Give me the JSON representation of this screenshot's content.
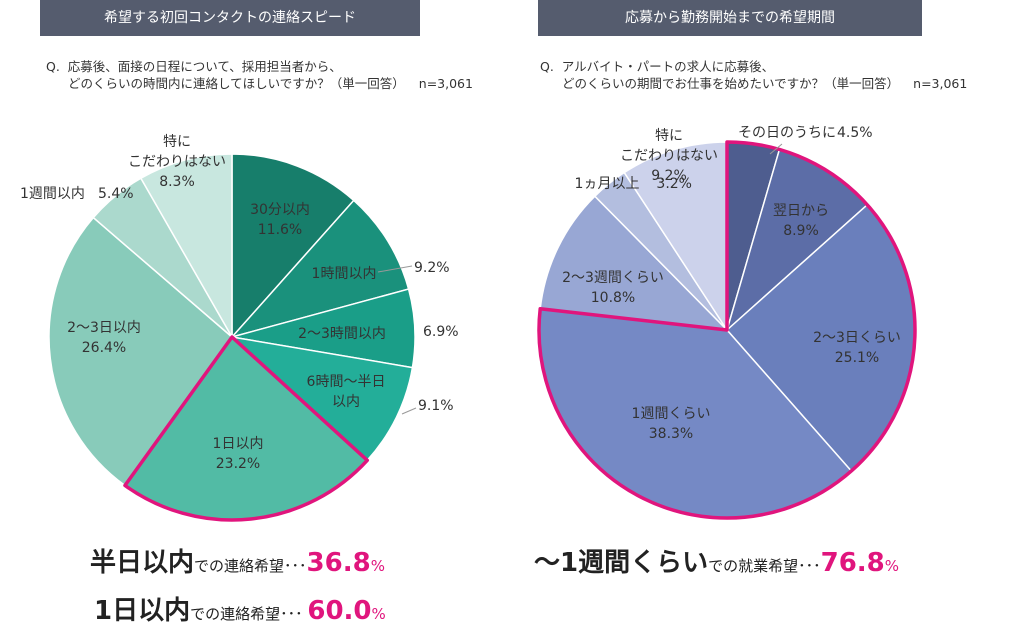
{
  "left": {
    "header": "希望する初回コンタクトの連絡スピード",
    "question_prefix": "Q.",
    "question_line1": "応募後、面接の日程について、採用担当者から、",
    "question_line2": "どのくらいの時間内に連絡してほしいですか？（単一回答）",
    "n_label": "n=3,061",
    "summary": [
      {
        "bold": "半日以内",
        "text": "での連絡希望･･･",
        "pct": "36.8",
        "sign": "%"
      },
      {
        "bold": "1日以内",
        "text": "での連絡希望･･･ ",
        "pct": "60.0",
        "sign": "%"
      }
    ]
  },
  "right": {
    "header": "応募から勤務開始までの希望期間",
    "question_prefix": "Q.",
    "question_line1": "アルバイト・パートの求人に応募後、",
    "question_line2": "どのくらいの期間でお仕事を始めたいですか？（単一回答）",
    "n_label": "n=3,061",
    "summary": [
      {
        "bold": "～1週間くらい",
        "text": "での就業希望･･･",
        "pct": "76.8",
        "sign": "%"
      }
    ]
  },
  "colors": {
    "highlight": "#e0157d",
    "left_slices": [
      "#177e6b",
      "#1a917c",
      "#1a9e88",
      "#23ae99",
      "#52bba5",
      "#88cbba",
      "#abd9cd",
      "#c8e7df"
    ],
    "right_slices": [
      "#4e5d8f",
      "#5c6da7",
      "#6a7fbc",
      "#7589c5",
      "#98a7d4",
      "#b3bedf",
      "#ccd2eb"
    ]
  },
  "chart_data": [
    {
      "type": "pie",
      "title": "希望する初回コンタクトの連絡スピード",
      "labels": [
        "30分以内",
        "1時間以内",
        "2～3時間以内",
        "6時間～半日以内",
        "1日以内",
        "2～3日以内",
        "1週間以内",
        "特にこだわりはない"
      ],
      "values": [
        11.6,
        9.2,
        6.9,
        9.1,
        23.2,
        26.4,
        5.4,
        8.3
      ],
      "value_labels": [
        "11.6%",
        "9.2%",
        "6.9%",
        "9.1%",
        "23.2%",
        "26.4%",
        "5.4%",
        "8.3%"
      ]
    },
    {
      "type": "pie",
      "title": "応募から勤務開始までの希望期間",
      "labels": [
        "その日のうちに",
        "翌日から",
        "2～3日くらい",
        "1週間くらい",
        "2～3週間くらい",
        "1ヵ月以上",
        "特にこだわりはない"
      ],
      "values": [
        4.5,
        8.9,
        25.1,
        38.3,
        10.8,
        3.2,
        9.2
      ],
      "value_labels": [
        "4.5%",
        "8.9%",
        "25.1%",
        "38.3%",
        "10.8%",
        "3.2%",
        "9.2%"
      ]
    }
  ]
}
